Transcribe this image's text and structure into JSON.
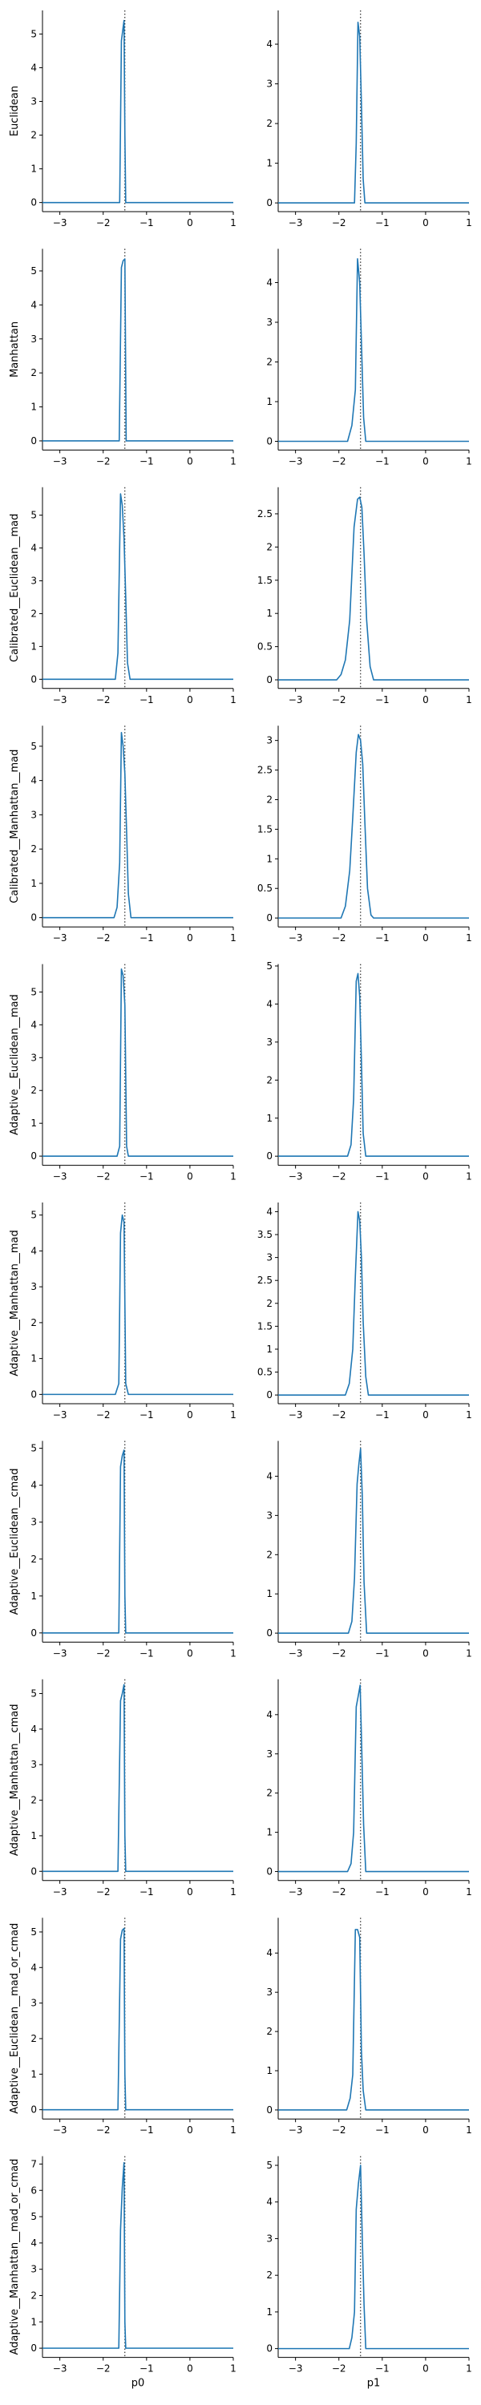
{
  "chart_data": {
    "type": "line",
    "layout": "10 rows x 2 columns",
    "spines": "left and bottom only",
    "grid": false,
    "colors": {
      "line": "#1f77b4",
      "reference": "#000000"
    },
    "reference_line": {
      "style": "dotted vertical",
      "x": -1.5
    },
    "columns": [
      {
        "xlabel": "p0",
        "xlim": [
          -3.4,
          1.0
        ],
        "xticks": [
          -3,
          -2,
          -1,
          0,
          1
        ]
      },
      {
        "xlabel": "p1",
        "xlim": [
          -3.4,
          1.0
        ],
        "xticks": [
          -3,
          -2,
          -1,
          0,
          1
        ]
      }
    ],
    "rows": [
      {
        "ylabel": "Euclidean",
        "panels": [
          {
            "ylim": [
              -0.27,
              5.7
            ],
            "yticks": [
              0,
              1,
              2,
              3,
              4,
              5
            ],
            "x": [
              -3.4,
              -1.62,
              -1.58,
              -1.56,
              -1.54,
              -1.52,
              -1.5,
              -1.48,
              1.0
            ],
            "y": [
              0,
              0,
              4.8,
              5.0,
              5.2,
              5.4,
              2.0,
              0,
              0
            ]
          },
          {
            "ylim": [
              -0.22,
              4.85
            ],
            "yticks": [
              0,
              1,
              2,
              3,
              4
            ],
            "x": [
              -3.4,
              -1.64,
              -1.6,
              -1.56,
              -1.52,
              -1.48,
              -1.44,
              -1.4,
              1.0
            ],
            "y": [
              0,
              0,
              1.5,
              4.55,
              4.2,
              2.5,
              0.6,
              0,
              0
            ]
          }
        ]
      },
      {
        "ylabel": "Manhattan",
        "panels": [
          {
            "ylim": [
              -0.27,
              5.65
            ],
            "yticks": [
              0,
              1,
              2,
              3,
              4,
              5
            ],
            "x": [
              -3.4,
              -1.63,
              -1.58,
              -1.54,
              -1.5,
              -1.47,
              1.0
            ],
            "y": [
              0,
              0,
              5.1,
              5.3,
              5.35,
              0,
              0
            ]
          },
          {
            "ylim": [
              -0.22,
              4.85
            ],
            "yticks": [
              0,
              1,
              2,
              3,
              4
            ],
            "x": [
              -3.4,
              -1.8,
              -1.7,
              -1.62,
              -1.57,
              -1.52,
              -1.48,
              -1.43,
              -1.38,
              1.0
            ],
            "y": [
              0,
              0,
              0.4,
              1.3,
              4.6,
              4.0,
              2.5,
              0.6,
              0,
              0
            ]
          }
        ]
      },
      {
        "ylabel": "Calibrated__Euclidean__mad",
        "panels": [
          {
            "ylim": [
              -0.28,
              5.85
            ],
            "yticks": [
              0,
              1,
              2,
              3,
              4,
              5
            ],
            "x": [
              -3.4,
              -1.72,
              -1.66,
              -1.6,
              -1.56,
              -1.52,
              -1.48,
              -1.44,
              -1.38,
              1.0
            ],
            "y": [
              0,
              0,
              0.8,
              5.65,
              5.3,
              4.3,
              2.5,
              0.5,
              0,
              0
            ]
          },
          {
            "ylim": [
              -0.13,
              2.9
            ],
            "yticks": [
              0.0,
              0.5,
              1.0,
              1.5,
              2.0,
              2.5
            ],
            "x": [
              -3.4,
              -2.05,
              -1.95,
              -1.85,
              -1.75,
              -1.65,
              -1.57,
              -1.52,
              -1.47,
              -1.42,
              -1.36,
              -1.28,
              -1.2,
              1.0
            ],
            "y": [
              0,
              0,
              0.08,
              0.3,
              0.9,
              2.3,
              2.72,
              2.75,
              2.6,
              1.9,
              0.9,
              0.2,
              0,
              0
            ]
          }
        ]
      },
      {
        "ylabel": "Calibrated__Manhattan__mad",
        "panels": [
          {
            "ylim": [
              -0.27,
              5.6
            ],
            "yticks": [
              0,
              1,
              2,
              3,
              4,
              5
            ],
            "x": [
              -3.4,
              -1.75,
              -1.68,
              -1.62,
              -1.58,
              -1.54,
              -1.5,
              -1.46,
              -1.42,
              -1.36,
              1.0
            ],
            "y": [
              0,
              0,
              0.3,
              1.6,
              5.4,
              5.0,
              4.2,
              2.5,
              0.7,
              0,
              0
            ]
          },
          {
            "ylim": [
              -0.15,
              3.25
            ],
            "yticks": [
              0.0,
              0.5,
              1.0,
              1.5,
              2.0,
              2.5,
              3.0
            ],
            "x": [
              -3.4,
              -1.95,
              -1.85,
              -1.75,
              -1.68,
              -1.6,
              -1.55,
              -1.5,
              -1.45,
              -1.4,
              -1.34,
              -1.26,
              -1.2,
              1.0
            ],
            "y": [
              0,
              0,
              0.2,
              0.8,
              1.7,
              2.8,
              3.1,
              3.0,
              2.6,
              1.6,
              0.5,
              0.05,
              0,
              0
            ]
          }
        ]
      },
      {
        "ylabel": "Adaptive__Euclidean__mad",
        "panels": [
          {
            "ylim": [
              -0.28,
              5.85
            ],
            "yticks": [
              0,
              1,
              2,
              3,
              4,
              5
            ],
            "x": [
              -3.4,
              -1.68,
              -1.62,
              -1.58,
              -1.54,
              -1.5,
              -1.46,
              -1.42,
              1.0
            ],
            "y": [
              0,
              0,
              0.3,
              5.7,
              5.5,
              4.6,
              0.3,
              0,
              0
            ]
          },
          {
            "ylim": [
              -0.24,
              5.05
            ],
            "yticks": [
              0,
              1,
              2,
              3,
              4,
              5
            ],
            "x": [
              -3.4,
              -1.8,
              -1.72,
              -1.66,
              -1.6,
              -1.56,
              -1.52,
              -1.48,
              -1.44,
              -1.38,
              1.0
            ],
            "y": [
              0,
              0,
              0.3,
              1.5,
              4.6,
              4.8,
              4.2,
              2.5,
              0.6,
              0,
              0
            ]
          }
        ]
      },
      {
        "ylabel": "Adaptive__Manhattan__mad",
        "panels": [
          {
            "ylim": [
              -0.26,
              5.35
            ],
            "yticks": [
              0,
              1,
              2,
              3,
              4,
              5
            ],
            "x": [
              -3.4,
              -1.72,
              -1.64,
              -1.6,
              -1.56,
              -1.52,
              -1.48,
              -1.42,
              1.0
            ],
            "y": [
              0,
              0,
              0.3,
              4.5,
              5.0,
              4.8,
              0.3,
              0,
              0
            ]
          },
          {
            "ylim": [
              -0.19,
              4.2
            ],
            "yticks": [
              0.0,
              0.5,
              1.0,
              1.5,
              2.0,
              2.5,
              3.0,
              3.5,
              4.0
            ],
            "x": [
              -3.4,
              -1.85,
              -1.76,
              -1.68,
              -1.62,
              -1.56,
              -1.52,
              -1.48,
              -1.44,
              -1.38,
              -1.32,
              1.0
            ],
            "y": [
              0,
              0,
              0.25,
              1.0,
              2.6,
              4.0,
              3.8,
              3.0,
              1.6,
              0.4,
              0,
              0
            ]
          }
        ]
      },
      {
        "ylabel": "Adaptive__Euclidean__cmad",
        "panels": [
          {
            "ylim": [
              -0.25,
              5.2
            ],
            "yticks": [
              0,
              1,
              2,
              3,
              4,
              5
            ],
            "x": [
              -3.4,
              -1.64,
              -1.6,
              -1.56,
              -1.52,
              -1.5,
              -1.48,
              1.0
            ],
            "y": [
              0,
              0,
              4.5,
              4.8,
              4.95,
              1.0,
              0,
              0
            ]
          },
          {
            "ylim": [
              -0.23,
              4.9
            ],
            "yticks": [
              0,
              1,
              2,
              3,
              4
            ],
            "x": [
              -3.4,
              -1.78,
              -1.7,
              -1.64,
              -1.58,
              -1.54,
              -1.5,
              -1.46,
              -1.42,
              -1.36,
              1.0
            ],
            "y": [
              0,
              0,
              0.3,
              1.4,
              3.8,
              4.3,
              4.7,
              3.5,
              1.3,
              0,
              0
            ]
          }
        ]
      },
      {
        "ylabel": "Adaptive__Manhattan__cmad",
        "panels": [
          {
            "ylim": [
              -0.26,
              5.4
            ],
            "yticks": [
              0,
              1,
              2,
              3,
              4,
              5
            ],
            "x": [
              -3.4,
              -1.66,
              -1.6,
              -1.56,
              -1.52,
              -1.5,
              -1.48,
              1.0
            ],
            "y": [
              0,
              0,
              4.8,
              5.0,
              5.25,
              1.0,
              0,
              0
            ]
          },
          {
            "ylim": [
              -0.23,
              4.9
            ],
            "yticks": [
              0,
              1,
              2,
              3,
              4
            ],
            "x": [
              -3.4,
              -1.8,
              -1.72,
              -1.66,
              -1.6,
              -1.55,
              -1.51,
              -1.47,
              -1.43,
              -1.38,
              1.0
            ],
            "y": [
              0,
              0,
              0.2,
              1.0,
              4.2,
              4.5,
              4.75,
              3.0,
              1.2,
              0,
              0
            ]
          }
        ]
      },
      {
        "ylabel": "Adaptive__Euclidean__mad_or_cmad",
        "panels": [
          {
            "ylim": [
              -0.26,
              5.4
            ],
            "yticks": [
              0,
              1,
              2,
              3,
              4,
              5
            ],
            "x": [
              -3.4,
              -1.66,
              -1.6,
              -1.56,
              -1.52,
              -1.5,
              -1.48,
              1.0
            ],
            "y": [
              0,
              0,
              4.8,
              5.05,
              5.1,
              1.0,
              0,
              0
            ]
          },
          {
            "ylim": [
              -0.23,
              4.9
            ],
            "yticks": [
              0,
              1,
              2,
              3,
              4
            ],
            "x": [
              -3.4,
              -1.82,
              -1.74,
              -1.68,
              -1.62,
              -1.57,
              -1.52,
              -1.48,
              -1.44,
              -1.38,
              1.0
            ],
            "y": [
              0,
              0,
              0.3,
              0.9,
              4.6,
              4.6,
              4.4,
              1.5,
              0.5,
              0,
              0
            ]
          }
        ]
      },
      {
        "ylabel": "Adaptive__Manhattan__mad_or_cmad",
        "panels": [
          {
            "ylim": [
              -0.35,
              7.3
            ],
            "yticks": [
              0,
              1,
              2,
              3,
              4,
              5,
              6,
              7
            ],
            "x": [
              -3.4,
              -1.64,
              -1.6,
              -1.56,
              -1.52,
              -1.5,
              -1.48,
              1.0
            ],
            "y": [
              0,
              0,
              4.5,
              6.1,
              7.05,
              1.0,
              0,
              0
            ]
          },
          {
            "ylim": [
              -0.24,
              5.25
            ],
            "yticks": [
              0,
              1,
              2,
              3,
              4,
              5
            ],
            "x": [
              -3.4,
              -1.76,
              -1.7,
              -1.64,
              -1.6,
              -1.55,
              -1.5,
              -1.46,
              -1.42,
              -1.38,
              1.0
            ],
            "y": [
              0,
              0,
              0.3,
              1.0,
              3.8,
              4.5,
              5.0,
              3.0,
              1.2,
              0,
              0
            ]
          }
        ]
      }
    ]
  }
}
